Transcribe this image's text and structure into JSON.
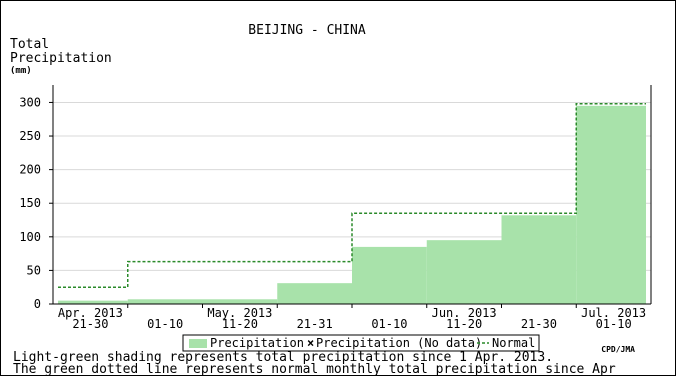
{
  "chart_data": {
    "type": "bar",
    "title": "BEIJING - CHINA",
    "ylabel": [
      "Total",
      "Precipitation",
      "(mm)"
    ],
    "ylim": [
      0,
      320
    ],
    "yticks": [
      0,
      50,
      100,
      150,
      200,
      250,
      300
    ],
    "grid": true,
    "credit": "CPD/JMA",
    "periods": [
      {
        "date": "Apr. 2013",
        "range": "21-30"
      },
      {
        "date": "",
        "range": "01-10"
      },
      {
        "date": "May. 2013",
        "range": "11-20"
      },
      {
        "date": "",
        "range": "21-31"
      },
      {
        "date": "",
        "range": "01-10"
      },
      {
        "date": "Jun. 2013",
        "range": "11-20"
      },
      {
        "date": "",
        "range": "21-30"
      },
      {
        "date": "Jul. 2013",
        "range": "01-10"
      }
    ],
    "series": [
      {
        "name": "Precipitation",
        "values": [
          5,
          7,
          7,
          31,
          85,
          95,
          132,
          295
        ],
        "color": "#a8e2aa"
      },
      {
        "name": "Precipitation (No data)",
        "values": [],
        "color": "#000000"
      },
      {
        "name": "Normal",
        "values": [
          25,
          63,
          63,
          63,
          135,
          135,
          135,
          298
        ],
        "color": "#2a8a2a"
      }
    ],
    "legend": {
      "position": "bottom",
      "items": [
        "Precipitation",
        "Precipitation (No data)",
        "Normal"
      ]
    }
  },
  "caption": [
    "Light-green shading represents total precipitation since 1 Apr. 2013.",
    "The green dotted line represents normal monthly total precipitation since Apr"
  ]
}
